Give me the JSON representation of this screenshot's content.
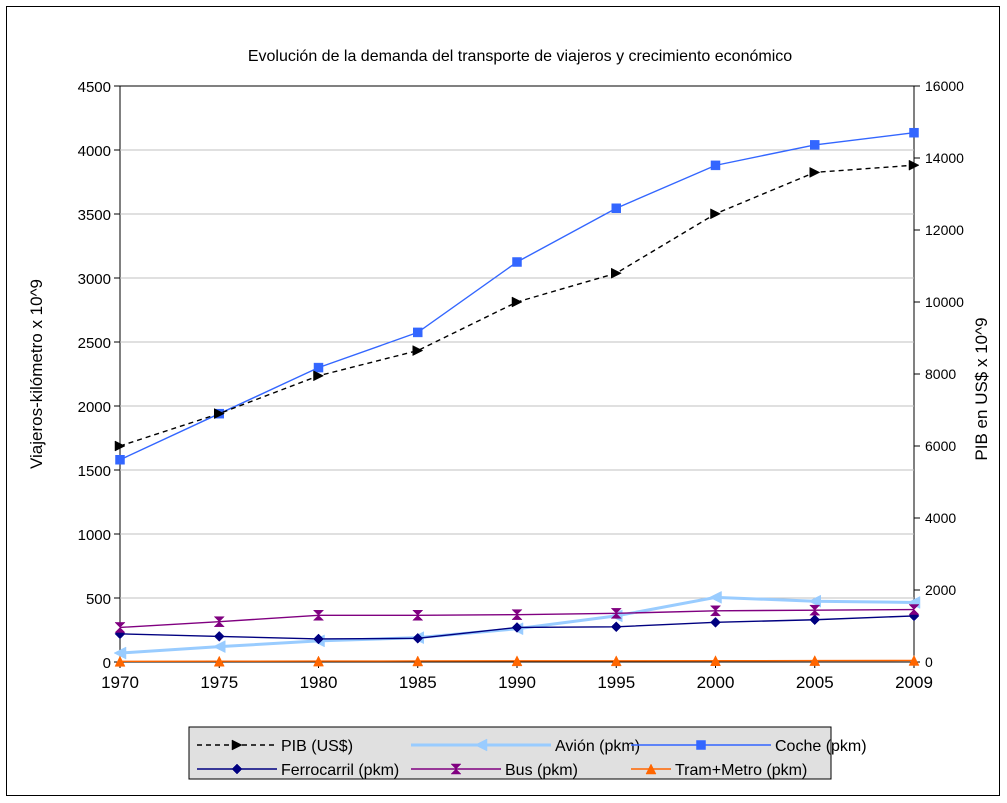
{
  "chart_data": {
    "type": "line",
    "title": "Evolución de la demanda del transporte de viajeros y crecimiento económico",
    "ylabel": "Viajeros-kilómetro x 10^9",
    "y2label": "PIB en US$ x 10^9",
    "categories": [
      "1970",
      "1975",
      "1980",
      "1985",
      "1990",
      "1995",
      "2000",
      "2005",
      "2009"
    ],
    "ylim": [
      0,
      4500
    ],
    "y2lim": [
      0,
      16000
    ],
    "yticks": [
      "0",
      "500",
      "1000",
      "1500",
      "2000",
      "2500",
      "3000",
      "3500",
      "4000",
      "4500"
    ],
    "y2ticks": [
      "0",
      "2000",
      "4000",
      "6000",
      "8000",
      "10000",
      "12000",
      "14000",
      "16000"
    ],
    "grid": true,
    "legend_position": "bottom",
    "series": [
      {
        "name": "PIB (US$)",
        "axis": "right",
        "color": "#000000",
        "dash": true,
        "marker": "triangle-right",
        "values": [
          6000,
          6900,
          7950,
          8650,
          10000,
          10800,
          12450,
          13600,
          13800
        ]
      },
      {
        "name": "Avión (pkm)",
        "axis": "left",
        "color": "#99ccff",
        "marker": "triangle-left",
        "thick": true,
        "values": [
          70,
          120,
          165,
          190,
          260,
          360,
          505,
          475,
          465
        ]
      },
      {
        "name": "Coche (pkm)",
        "axis": "left",
        "color": "#3366ff",
        "marker": "square",
        "values": [
          1580,
          1940,
          2300,
          2575,
          3125,
          3545,
          3880,
          4040,
          4135
        ]
      },
      {
        "name": "Ferrocarril (pkm)",
        "axis": "left",
        "color": "#000080",
        "marker": "diamond",
        "values": [
          220,
          200,
          180,
          185,
          270,
          275,
          310,
          330,
          360
        ]
      },
      {
        "name": "Bus (pkm)",
        "axis": "left",
        "color": "#800080",
        "marker": "hourglass",
        "values": [
          270,
          315,
          365,
          365,
          370,
          380,
          400,
          405,
          410
        ]
      },
      {
        "name": "Tram+Metro (pkm)",
        "axis": "left",
        "color": "#ff6600",
        "marker": "triangle-up",
        "values": [
          5,
          6,
          7,
          8,
          9,
          9,
          10,
          11,
          12
        ]
      }
    ]
  }
}
